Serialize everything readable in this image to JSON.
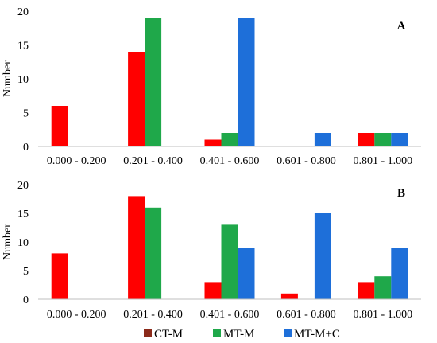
{
  "chart_data": [
    {
      "type": "bar",
      "panel_label": "A",
      "ylabel": "Number",
      "categories": [
        "0.000 - 0.200",
        "0.201 - 0.400",
        "0.401 - 0.600",
        "0.601 - 0.800",
        "0.801 - 1.000"
      ],
      "series": [
        {
          "name": "CT-M",
          "color": "#ff0000",
          "values": [
            6,
            14,
            1,
            0,
            2
          ]
        },
        {
          "name": "MT-M",
          "color": "#1fa84a",
          "values": [
            0,
            19,
            2,
            0,
            2
          ]
        },
        {
          "name": "MT-M+C",
          "color": "#1e6fd9",
          "values": [
            0,
            0,
            19,
            2,
            2
          ]
        }
      ],
      "ylim": [
        0,
        20
      ],
      "yticks": [
        0,
        5,
        10,
        15,
        20
      ],
      "grid": false,
      "legend": "none"
    },
    {
      "type": "bar",
      "panel_label": "B",
      "ylabel": "Number",
      "categories": [
        "0.000 - 0.200",
        "0.201 - 0.400",
        "0.401 - 0.600",
        "0.601 - 0.800",
        "0.801 - 1.000"
      ],
      "series": [
        {
          "name": "CT-M",
          "color": "#ff0000",
          "values": [
            8,
            18,
            3,
            1,
            3
          ]
        },
        {
          "name": "MT-M",
          "color": "#1fa84a",
          "values": [
            0,
            16,
            13,
            0,
            4
          ]
        },
        {
          "name": "MT-M+C",
          "color": "#1e6fd9",
          "values": [
            0,
            0,
            9,
            15,
            9
          ]
        }
      ],
      "ylim": [
        0,
        20
      ],
      "yticks": [
        0,
        5,
        10,
        15,
        20
      ],
      "grid": false,
      "legend": "bottom"
    }
  ],
  "legend": {
    "items": [
      {
        "name": "CT-M",
        "swatch": "#8b2a1a"
      },
      {
        "name": "MT-M",
        "swatch": "#1fa84a"
      },
      {
        "name": "MT-M+C",
        "swatch": "#1e6fd9"
      }
    ]
  }
}
